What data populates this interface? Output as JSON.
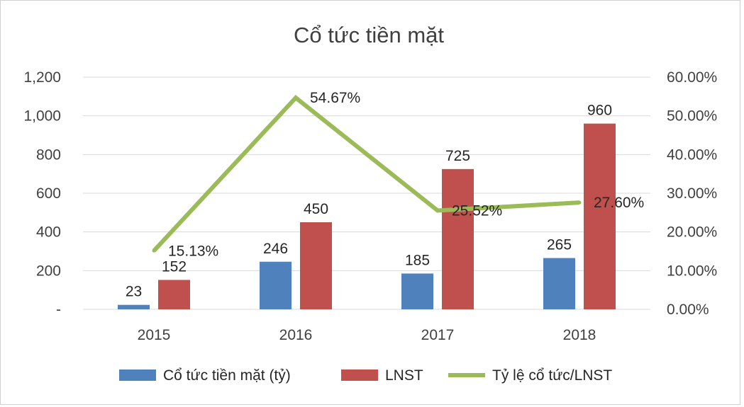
{
  "chart_data": {
    "type": "bar",
    "title": "Cổ tức tiền mặt",
    "categories": [
      "2015",
      "2016",
      "2017",
      "2018"
    ],
    "series": [
      {
        "name": "Cổ tức tiền mặt (tỷ)",
        "type": "bar",
        "axis": "left",
        "color": "#4f81bd",
        "values": [
          23,
          246,
          185,
          265
        ],
        "labels": [
          "23",
          "246",
          "185",
          "265"
        ]
      },
      {
        "name": "LNST",
        "type": "bar",
        "axis": "left",
        "color": "#c0504d",
        "values": [
          152,
          450,
          725,
          960
        ],
        "labels": [
          "152",
          "450",
          "725",
          "960"
        ]
      },
      {
        "name": "Tỷ lệ cổ tức/LNST",
        "type": "line",
        "axis": "right",
        "color": "#9bbb59",
        "values": [
          15.13,
          54.67,
          25.52,
          27.6
        ],
        "labels": [
          "15.13%",
          "54.67%",
          "25.52%",
          "27.60%"
        ]
      }
    ],
    "y_left": {
      "ylim": [
        0,
        1200
      ],
      "ticks": [
        0,
        200,
        400,
        600,
        800,
        1000,
        1200
      ],
      "tick_labels": [
        "-",
        "200",
        "400",
        "600",
        "800",
        "1,000",
        "1,200"
      ]
    },
    "y_right": {
      "ylim": [
        0,
        60
      ],
      "ticks": [
        0,
        10,
        20,
        30,
        40,
        50,
        60
      ],
      "tick_labels": [
        "0.00%",
        "10.00%",
        "20.00%",
        "30.00%",
        "40.00%",
        "50.00%",
        "60.00%"
      ]
    },
    "grid": true,
    "legend": "bottom"
  }
}
